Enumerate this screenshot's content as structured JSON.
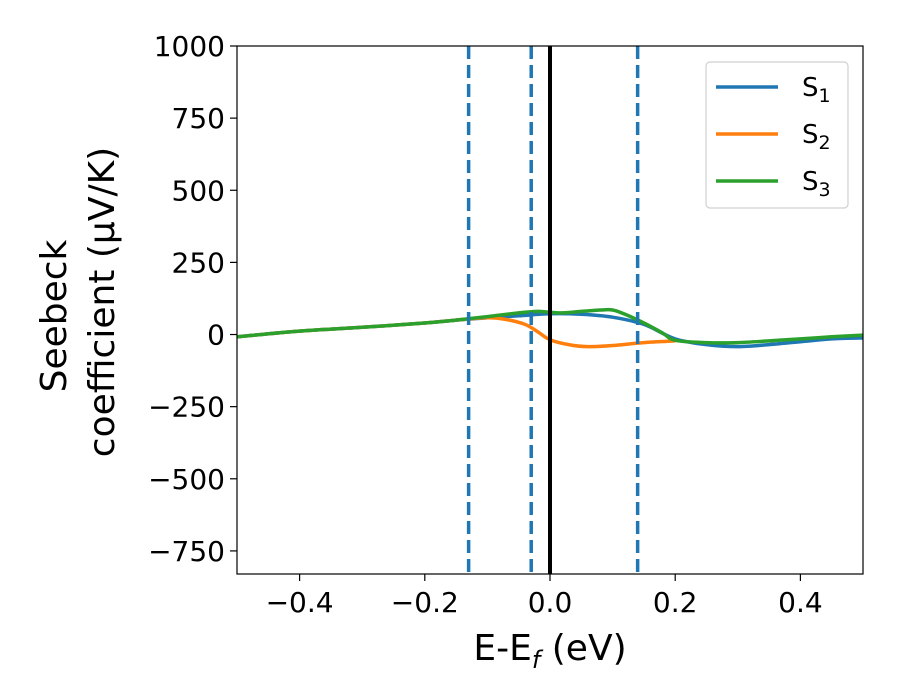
{
  "chart_data": {
    "type": "line",
    "xlabel": {
      "main": "E-E",
      "subscript": "f",
      "suffix": " (eV)"
    },
    "ylabel": {
      "line1": "Seebeck",
      "line2": "coefficient  (μV/K)"
    },
    "xlim": [
      -0.5,
      0.5
    ],
    "ylim": [
      -830,
      1000
    ],
    "xticks": [
      -0.4,
      -0.2,
      0.0,
      0.2,
      0.4
    ],
    "xtick_labels": [
      "−0.4",
      "−0.2",
      "0.0",
      "0.2",
      "0.4"
    ],
    "yticks": [
      1000,
      750,
      500,
      250,
      0,
      -250,
      -500,
      -750
    ],
    "ytick_labels": [
      "1000",
      "750",
      "500",
      "250",
      "0",
      "−250",
      "−500",
      "−750"
    ],
    "grid": false,
    "legend_position": "top-right",
    "vertical_lines": [
      {
        "x": 0.0,
        "style": "solid",
        "color": "#000000"
      },
      {
        "x": -0.13,
        "style": "dashed",
        "color": "#1f77b4"
      },
      {
        "x": -0.03,
        "style": "dashed",
        "color": "#1f77b4"
      },
      {
        "x": 0.14,
        "style": "dashed",
        "color": "#1f77b4"
      }
    ],
    "series": [
      {
        "name": "S",
        "subscript": "1",
        "color": "#1f77b4",
        "x": [
          -0.5,
          -0.4,
          -0.3,
          -0.2,
          -0.15,
          -0.1,
          -0.05,
          0.0,
          0.05,
          0.1,
          0.15,
          0.2,
          0.25,
          0.3,
          0.35,
          0.4,
          0.45,
          0.5
        ],
        "y": [
          -8,
          12,
          25,
          40,
          50,
          58,
          65,
          72,
          70,
          60,
          35,
          -15,
          -35,
          -42,
          -35,
          -25,
          -15,
          -12
        ]
      },
      {
        "name": "S",
        "subscript": "2",
        "color": "#ff7f0e",
        "x": [
          -0.5,
          -0.4,
          -0.3,
          -0.2,
          -0.15,
          -0.1,
          -0.07,
          -0.04,
          -0.02,
          0.0,
          0.03,
          0.06,
          0.1,
          0.15,
          0.2
        ],
        "y": [
          -8,
          12,
          25,
          40,
          50,
          58,
          52,
          35,
          10,
          -18,
          -35,
          -42,
          -38,
          -28,
          -22
        ]
      },
      {
        "name": "S",
        "subscript": "3",
        "color": "#2ca02c",
        "x": [
          -0.5,
          -0.4,
          -0.3,
          -0.2,
          -0.15,
          -0.1,
          -0.05,
          -0.02,
          0.0,
          0.02,
          0.05,
          0.08,
          0.1,
          0.12,
          0.15,
          0.18,
          0.2,
          0.25,
          0.3,
          0.35,
          0.4,
          0.45,
          0.5
        ],
        "y": [
          -8,
          12,
          25,
          40,
          50,
          62,
          75,
          80,
          77,
          75,
          80,
          85,
          85,
          70,
          40,
          5,
          -20,
          -28,
          -28,
          -22,
          -15,
          -8,
          -2
        ]
      }
    ]
  }
}
